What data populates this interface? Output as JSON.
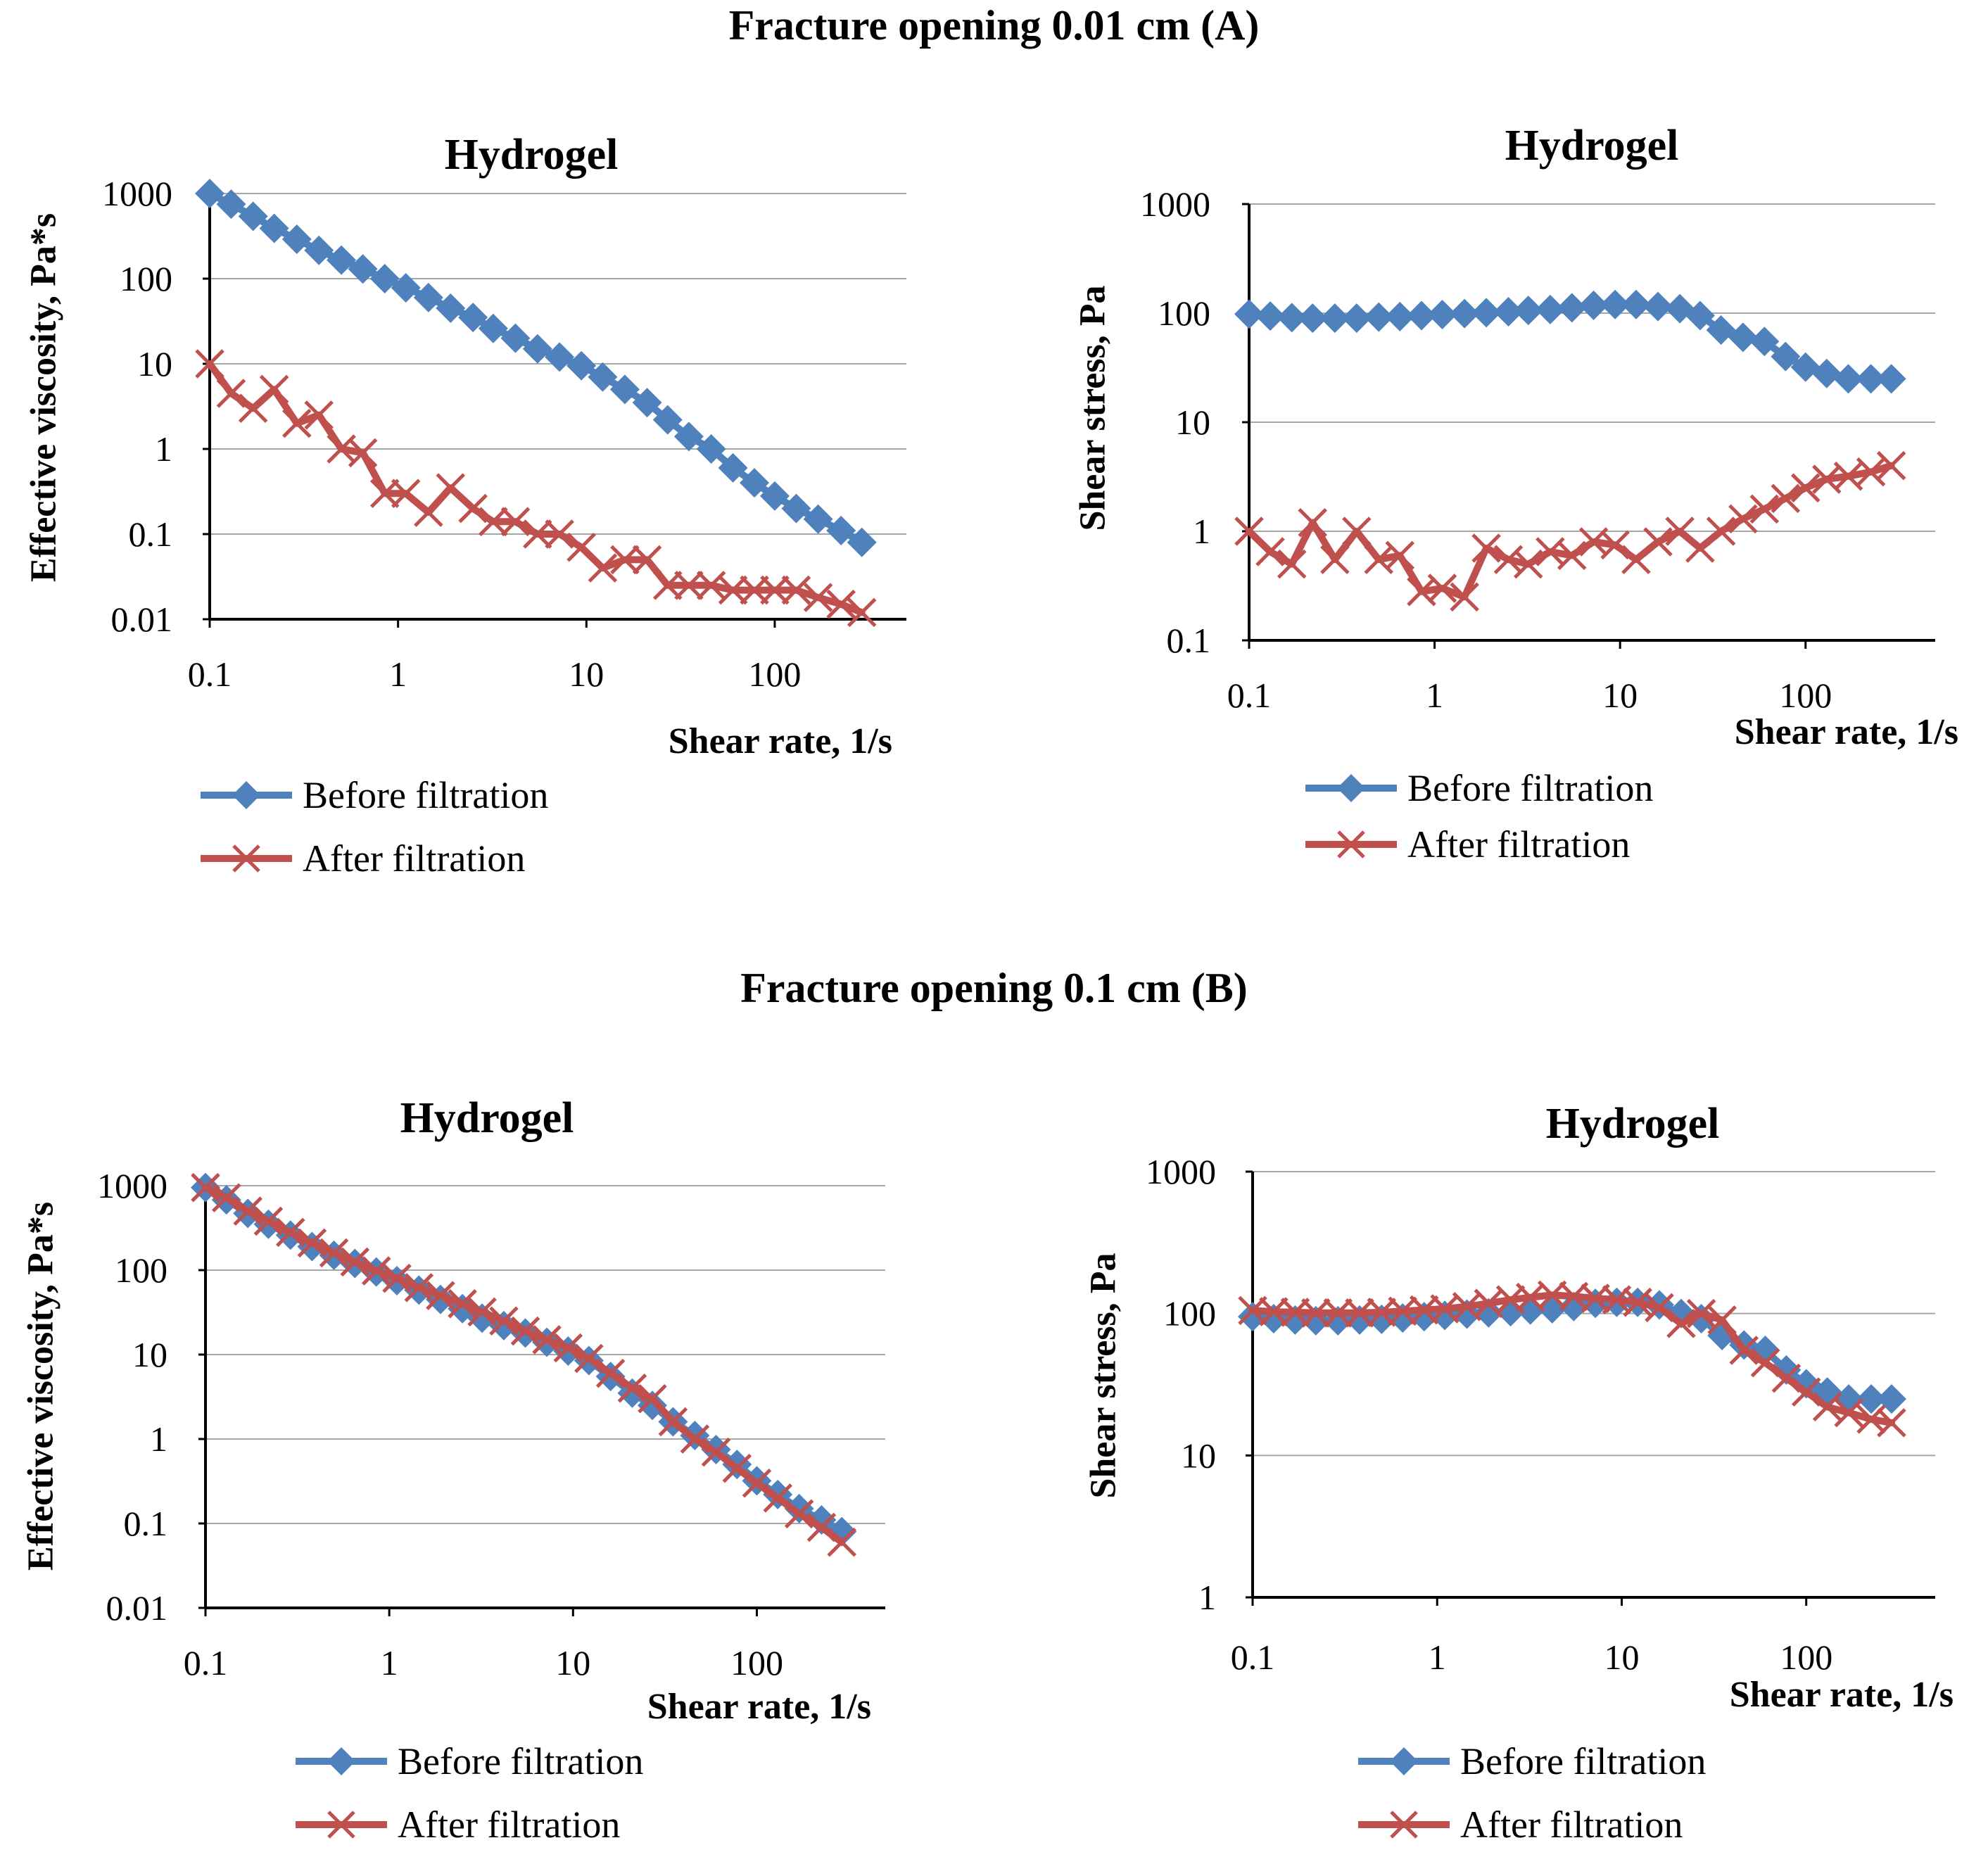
{
  "sections": [
    {
      "title": "Fracture opening 0.01 cm (A)"
    },
    {
      "title": "Fracture opening 0.1 cm (B)"
    }
  ],
  "colors": {
    "before": "#4F81BD",
    "after": "#C0504D",
    "grid": "#A6A6A6",
    "axis": "#000000"
  },
  "chart_data": [
    {
      "id": "A-viscosity",
      "type": "line",
      "title": "Hydrogel",
      "xlabel": "Shear rate, 1/s",
      "ylabel": "Effective viscosity, Pa*s",
      "x_scale": "log",
      "y_scale": "log",
      "xlim": [
        0.1,
        500
      ],
      "ylim": [
        0.01,
        1000
      ],
      "x_ticks": [
        "0.1",
        "1",
        "10",
        "100"
      ],
      "y_ticks": [
        "0.01",
        "0.1",
        "1",
        "10",
        "100",
        "1000"
      ],
      "grid": "horizontal",
      "legend_position": "bottom-left",
      "x": [
        0.1,
        0.13,
        0.17,
        0.22,
        0.29,
        0.38,
        0.5,
        0.65,
        0.85,
        1.1,
        1.45,
        1.9,
        2.5,
        3.2,
        4.2,
        5.5,
        7.2,
        9.4,
        12.2,
        16,
        21,
        27,
        35,
        46,
        60,
        78,
        100,
        130,
        170,
        225,
        290
      ],
      "series": [
        {
          "name": "Before filtration",
          "marker": "diamond",
          "color": "#4F81BD",
          "values": [
            1000,
            750,
            540,
            390,
            290,
            215,
            165,
            130,
            100,
            78,
            60,
            45,
            35,
            26,
            20,
            15,
            12,
            9.5,
            7,
            5,
            3.5,
            2.2,
            1.4,
            1.0,
            0.6,
            0.4,
            0.28,
            0.2,
            0.15,
            0.11,
            0.08
          ]
        },
        {
          "name": "After filtration",
          "marker": "x",
          "color": "#C0504D",
          "values": [
            10,
            4.5,
            3,
            5,
            2,
            2.5,
            1,
            0.9,
            0.3,
            0.3,
            0.18,
            0.35,
            0.2,
            0.14,
            0.14,
            0.1,
            0.1,
            0.07,
            0.04,
            0.05,
            0.05,
            0.025,
            0.025,
            0.025,
            0.022,
            0.022,
            0.022,
            0.022,
            0.018,
            0.015,
            0.012
          ]
        }
      ]
    },
    {
      "id": "A-stress",
      "type": "line",
      "title": "Hydrogel",
      "xlabel": "Shear rate, 1/s",
      "ylabel": "Shear stress, Pa",
      "x_scale": "log",
      "y_scale": "log",
      "xlim": [
        0.1,
        500
      ],
      "ylim": [
        0.1,
        1000
      ],
      "x_ticks": [
        "0.1",
        "1",
        "10",
        "100"
      ],
      "y_ticks": [
        "0.1",
        "1",
        "10",
        "100",
        "1000"
      ],
      "grid": "horizontal",
      "legend_position": "bottom-left",
      "x": [
        0.1,
        0.13,
        0.17,
        0.22,
        0.29,
        0.38,
        0.5,
        0.65,
        0.85,
        1.1,
        1.45,
        1.9,
        2.5,
        3.2,
        4.2,
        5.5,
        7.2,
        9.4,
        12.2,
        16,
        21,
        27,
        35,
        46,
        60,
        78,
        100,
        130,
        170,
        225,
        290
      ],
      "series": [
        {
          "name": "Before filtration",
          "marker": "diamond",
          "color": "#4F81BD",
          "values": [
            98,
            94,
            91,
            90,
            90,
            90,
            92,
            93,
            95,
            97,
            99,
            101,
            103,
            106,
            108,
            112,
            118,
            120,
            120,
            115,
            110,
            95,
            70,
            60,
            55,
            40,
            32,
            28,
            25,
            25,
            25
          ]
        },
        {
          "name": "After filtration",
          "marker": "x",
          "color": "#C0504D",
          "values": [
            1,
            0.65,
            0.5,
            1.2,
            0.55,
            1.0,
            0.55,
            0.6,
            0.28,
            0.3,
            0.25,
            0.7,
            0.55,
            0.5,
            0.65,
            0.6,
            0.8,
            0.75,
            0.55,
            0.8,
            1.0,
            0.7,
            1.0,
            1.3,
            1.6,
            2.0,
            2.5,
            3.0,
            3.2,
            3.5,
            4.0
          ]
        }
      ]
    },
    {
      "id": "B-viscosity",
      "type": "line",
      "title": "Hydrogel",
      "xlabel": "Shear rate, 1/s",
      "ylabel": "Effective viscosity, Pa*s",
      "x_scale": "log",
      "y_scale": "log",
      "xlim": [
        0.1,
        500
      ],
      "ylim": [
        0.01,
        1000
      ],
      "x_ticks": [
        "0.1",
        "1",
        "10",
        "100"
      ],
      "y_ticks": [
        "0.01",
        "0.1",
        "1",
        "10",
        "100",
        "1000"
      ],
      "grid": "horizontal",
      "legend_position": "bottom-left",
      "x": [
        0.1,
        0.13,
        0.17,
        0.22,
        0.29,
        0.38,
        0.5,
        0.65,
        0.85,
        1.1,
        1.45,
        1.9,
        2.5,
        3.2,
        4.2,
        5.5,
        7.2,
        9.4,
        12.2,
        16,
        21,
        27,
        35,
        46,
        60,
        78,
        100,
        130,
        170,
        225,
        290
      ],
      "series": [
        {
          "name": "Before filtration",
          "marker": "diamond",
          "color": "#4F81BD",
          "values": [
            950,
            680,
            470,
            350,
            260,
            190,
            150,
            120,
            95,
            75,
            58,
            45,
            35,
            27,
            22,
            18,
            14,
            11,
            8.5,
            5.5,
            3.5,
            2.5,
            1.6,
            1.1,
            0.75,
            0.5,
            0.32,
            0.22,
            0.15,
            0.11,
            0.08
          ]
        },
        {
          "name": "After filtration",
          "marker": "x",
          "color": "#C0504D",
          "values": [
            950,
            720,
            500,
            380,
            280,
            210,
            160,
            125,
            98,
            80,
            62,
            50,
            40,
            32,
            25,
            19,
            15,
            12,
            9,
            6,
            4,
            3,
            1.6,
            1.0,
            0.7,
            0.45,
            0.3,
            0.2,
            0.13,
            0.09,
            0.06
          ]
        }
      ]
    },
    {
      "id": "B-stress",
      "type": "line",
      "title": "Hydrogel",
      "xlabel": "Shear rate, 1/s",
      "ylabel": "Shear stress, Pa",
      "x_scale": "log",
      "y_scale": "log",
      "xlim": [
        0.1,
        500
      ],
      "ylim": [
        1,
        1000
      ],
      "x_ticks": [
        "0.1",
        "1",
        "10",
        "100"
      ],
      "y_ticks": [
        "1",
        "10",
        "100",
        "1000"
      ],
      "grid": "horizontal",
      "legend_position": "bottom-left",
      "x": [
        0.1,
        0.13,
        0.17,
        0.22,
        0.29,
        0.38,
        0.5,
        0.65,
        0.85,
        1.1,
        1.45,
        1.9,
        2.5,
        3.2,
        4.2,
        5.5,
        7.2,
        9.4,
        12.2,
        16,
        21,
        27,
        35,
        46,
        60,
        78,
        100,
        130,
        170,
        225,
        290
      ],
      "series": [
        {
          "name": "Before filtration",
          "marker": "diamond",
          "color": "#4F81BD",
          "values": [
            95,
            92,
            90,
            89,
            89,
            90,
            91,
            93,
            95,
            97,
            99,
            101,
            103,
            106,
            108,
            112,
            118,
            120,
            120,
            115,
            100,
            92,
            70,
            60,
            55,
            40,
            32,
            28,
            25,
            25,
            25
          ]
        },
        {
          "name": "After filtration",
          "marker": "x",
          "color": "#C0504D",
          "values": [
            105,
            103,
            102,
            101,
            101,
            101,
            102,
            104,
            106,
            108,
            112,
            118,
            125,
            130,
            135,
            132,
            128,
            125,
            120,
            110,
            85,
            100,
            90,
            55,
            45,
            35,
            28,
            22,
            20,
            18,
            17
          ]
        }
      ]
    }
  ]
}
